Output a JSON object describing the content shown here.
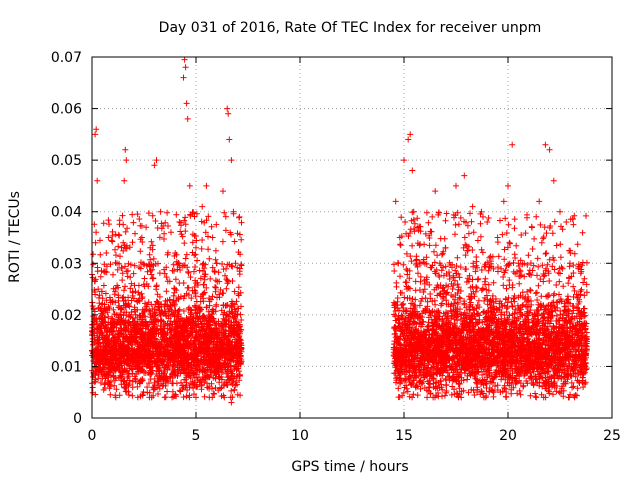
{
  "chart_data": {
    "type": "scatter",
    "title": "Day 031 of 2016, Rate Of TEC Index for receiver unpm",
    "xlabel": "GPS time / hours",
    "ylabel": "ROTI / TECUs",
    "xlim": [
      0,
      25
    ],
    "ylim": [
      0,
      0.07
    ],
    "xticks": [
      0,
      5,
      10,
      15,
      20,
      25
    ],
    "yticks": [
      0,
      0.01,
      0.02,
      0.03,
      0.04,
      0.05,
      0.06,
      0.07
    ],
    "xtick_labels": [
      "0",
      "5",
      "10",
      "15",
      "20",
      "25"
    ],
    "ytick_labels": [
      "0",
      "0.01",
      "0.02",
      "0.03",
      "0.04",
      "0.05",
      "0.06",
      "0.07"
    ],
    "grid": true,
    "marker": "+",
    "marker_color": "#ff0000",
    "series": [
      {
        "name": "ROTI",
        "segments": [
          [
            0.0,
            7.2
          ],
          [
            14.5,
            23.8
          ]
        ],
        "typical_range": [
          0.004,
          0.03
        ],
        "points": [
          [
            0.1,
            0.012
          ],
          [
            0.15,
            0.055
          ],
          [
            0.2,
            0.056
          ],
          [
            0.25,
            0.046
          ],
          [
            0.3,
            0.025
          ],
          [
            0.4,
            0.018
          ],
          [
            0.6,
            0.022
          ],
          [
            0.8,
            0.015
          ],
          [
            1.0,
            0.01
          ],
          [
            1.2,
            0.03
          ],
          [
            1.5,
            0.034
          ],
          [
            1.55,
            0.046
          ],
          [
            1.6,
            0.052
          ],
          [
            1.65,
            0.05
          ],
          [
            1.8,
            0.02
          ],
          [
            2.0,
            0.028
          ],
          [
            2.2,
            0.012
          ],
          [
            2.4,
            0.035
          ],
          [
            2.6,
            0.037
          ],
          [
            2.8,
            0.033
          ],
          [
            3.0,
            0.049
          ],
          [
            3.1,
            0.05
          ],
          [
            3.3,
            0.04
          ],
          [
            3.5,
            0.028
          ],
          [
            3.8,
            0.036
          ],
          [
            4.0,
            0.032
          ],
          [
            4.2,
            0.038
          ],
          [
            4.4,
            0.066
          ],
          [
            4.45,
            0.0695
          ],
          [
            4.5,
            0.068
          ],
          [
            4.55,
            0.061
          ],
          [
            4.6,
            0.058
          ],
          [
            4.7,
            0.045
          ],
          [
            5.0,
            0.033
          ],
          [
            5.3,
            0.041
          ],
          [
            5.5,
            0.045
          ],
          [
            5.8,
            0.035
          ],
          [
            6.0,
            0.03
          ],
          [
            6.3,
            0.044
          ],
          [
            6.5,
            0.06
          ],
          [
            6.55,
            0.059
          ],
          [
            6.6,
            0.054
          ],
          [
            6.7,
            0.05
          ],
          [
            6.8,
            0.04
          ],
          [
            6.9,
            0.03
          ],
          [
            7.0,
            0.02
          ],
          [
            7.1,
            0.012
          ],
          [
            6.7,
            0.003
          ],
          [
            14.6,
            0.042
          ],
          [
            14.8,
            0.035
          ],
          [
            15.0,
            0.05
          ],
          [
            15.2,
            0.054
          ],
          [
            15.3,
            0.055
          ],
          [
            15.4,
            0.048
          ],
          [
            15.6,
            0.03
          ],
          [
            16.0,
            0.026
          ],
          [
            16.5,
            0.044
          ],
          [
            17.0,
            0.033
          ],
          [
            17.5,
            0.045
          ],
          [
            17.9,
            0.047
          ],
          [
            18.3,
            0.041
          ],
          [
            18.8,
            0.039
          ],
          [
            19.0,
            0.038
          ],
          [
            19.5,
            0.035
          ],
          [
            19.8,
            0.042
          ],
          [
            20.0,
            0.045
          ],
          [
            20.2,
            0.053
          ],
          [
            20.5,
            0.03
          ],
          [
            21.0,
            0.028
          ],
          [
            21.5,
            0.042
          ],
          [
            21.8,
            0.053
          ],
          [
            22.0,
            0.052
          ],
          [
            22.2,
            0.046
          ],
          [
            22.5,
            0.04
          ],
          [
            23.0,
            0.032
          ],
          [
            23.5,
            0.02
          ],
          [
            23.7,
            0.01
          ],
          [
            23.2,
            0.004
          ]
        ]
      }
    ]
  }
}
